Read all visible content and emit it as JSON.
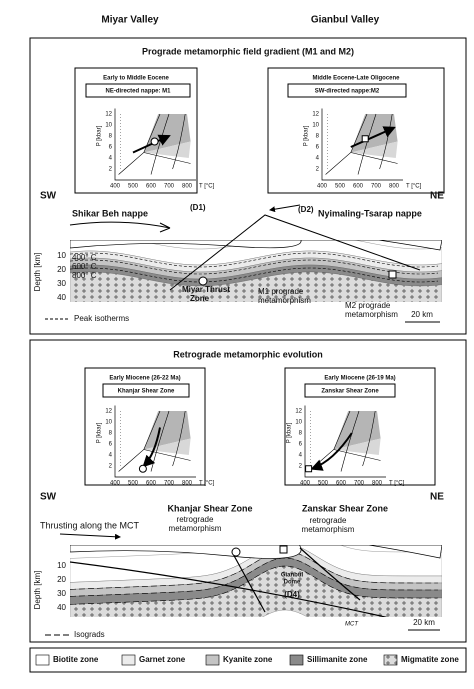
{
  "header": {
    "left": "Miyar Valley",
    "right": "Gianbul Valley"
  },
  "inset_axes": {
    "y_label": "P [kbar]",
    "x_label": "T [°C]",
    "yticks": [
      "2",
      "4",
      "6",
      "8",
      "10",
      "12"
    ],
    "xticks": [
      "400",
      "500",
      "600",
      "700",
      "800"
    ]
  },
  "panels": [
    {
      "title": "Prograde metamorphic field gradient (M1 and M2)",
      "insets": [
        {
          "age": "Early to Middle Eocene",
          "label": "NE-directed nappe: M1"
        },
        {
          "age": "Middle Eocene-Late Oligocene",
          "label": "SW-directed nappe:M2"
        }
      ],
      "sw": "SW",
      "ne": "NE",
      "depth_label": "Depth [km]",
      "depth_ticks": [
        "10",
        "20",
        "30",
        "40"
      ],
      "nappe_left": "Shikar Beh nappe",
      "d1": "(D1)",
      "d2": "(D2)",
      "nappe_right": "Nyimaling-Tsarap nappe",
      "isotherms": [
        "400° C",
        "600° C",
        "800° C"
      ],
      "thrust_zone": [
        "Miyar Thrust",
        "Zone"
      ],
      "m1": [
        "M1 prograde",
        "metamorphism"
      ],
      "m2": [
        "M2 prograde",
        "metamorphism"
      ],
      "key": "Peak isotherms",
      "scale": "20 km"
    },
    {
      "title": "Retrograde metamorphic evolution",
      "insets": [
        {
          "age": "Early Miocene (26-22 Ma)",
          "label": "Khanjar Shear Zone"
        },
        {
          "age": "Early Miocene (26-19 Ma)",
          "label": "Zanskar Shear Zone"
        }
      ],
      "sw": "SW",
      "ne": "NE",
      "depth_label": "Depth [km]",
      "depth_ticks": [
        "10",
        "20",
        "30",
        "40"
      ],
      "ksz": "Khanjar Shear Zone",
      "zsz": "Zanskar Shear Zone",
      "mct_thrust": "Thrusting along the MCT",
      "retro_left": [
        "retrograde",
        "metamorphism"
      ],
      "retro_right": [
        "retrograde",
        "metamorphism"
      ],
      "dome": [
        "Gianbul",
        "Dome"
      ],
      "d4": "(D4)",
      "mct": "MCT",
      "key": "Isograds",
      "scale": "20 km"
    }
  ],
  "legend": [
    "Biotite zone",
    "Garnet zone",
    "Kyanite zone",
    "Sillimanite zone",
    "Migmatite zone"
  ]
}
